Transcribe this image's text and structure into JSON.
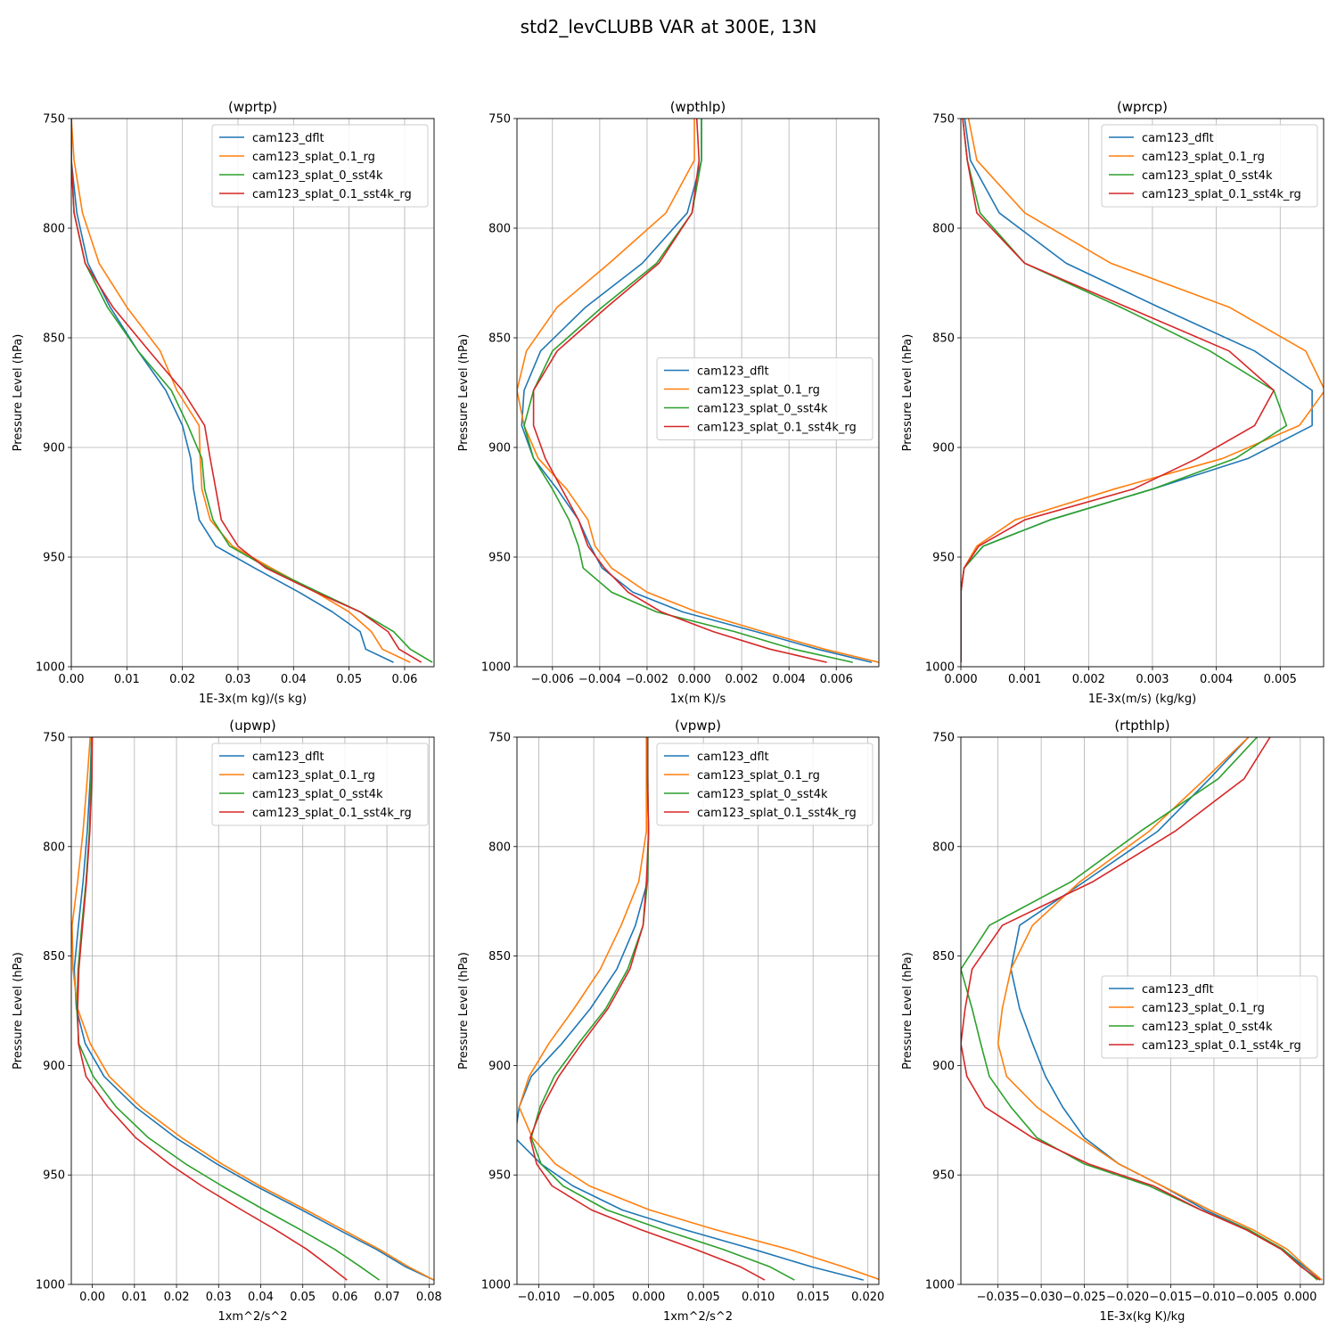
{
  "figure": {
    "title": "std2_levCLUBB VAR at 300E, 13N",
    "series_colors": [
      "#1f77b4",
      "#ff7f0e",
      "#2ca02c",
      "#d62728"
    ]
  },
  "chart_data": [
    {
      "type": "line",
      "title": "(wprtp)",
      "xlabel": "1E-3x(m kg)/(s kg)",
      "ylabel": "Pressure Level (hPa)",
      "xlim": [
        0,
        0.0653
      ],
      "ylim": [
        1000,
        750
      ],
      "xticks": [
        0,
        0.01,
        0.02,
        0.03,
        0.04,
        0.05,
        0.06
      ],
      "xticklabels": [
        "0.00",
        "0.01",
        "0.02",
        "0.03",
        "0.04",
        "0.05",
        "0.06"
      ],
      "yticks": [
        750,
        800,
        850,
        900,
        950,
        1000
      ],
      "yticklabels": [
        "750",
        "800",
        "850",
        "900",
        "950",
        "1000"
      ],
      "legend": "top-right",
      "levels": [
        750,
        769,
        793,
        816,
        836,
        856,
        874,
        890,
        905,
        919,
        933,
        945,
        955,
        966,
        975,
        984,
        992,
        998
      ],
      "series": [
        {
          "name": "cam123_dflt",
          "values": [
            0,
            0,
            0.001,
            0.003,
            0.007,
            0.012,
            0.017,
            0.02,
            0.0215,
            0.022,
            0.023,
            0.026,
            0.033,
            0.041,
            0.047,
            0.052,
            0.053,
            0.058
          ]
        },
        {
          "name": "cam123_splat_0.1_rg",
          "values": [
            0,
            0.0005,
            0.002,
            0.005,
            0.01,
            0.016,
            0.019,
            0.023,
            0.0232,
            0.0235,
            0.025,
            0.029,
            0.036,
            0.044,
            0.05,
            0.054,
            0.056,
            0.061
          ]
        },
        {
          "name": "cam123_splat_0_sst4k",
          "values": [
            0,
            0,
            0.0005,
            0.0025,
            0.0065,
            0.012,
            0.018,
            0.021,
            0.0235,
            0.024,
            0.0255,
            0.0285,
            0.0355,
            0.0445,
            0.052,
            0.058,
            0.061,
            0.065
          ]
        },
        {
          "name": "cam123_splat_0.1_sst4k_rg",
          "values": [
            0,
            0,
            0.0005,
            0.0025,
            0.0075,
            0.014,
            0.02,
            0.024,
            0.025,
            0.026,
            0.027,
            0.03,
            0.035,
            0.044,
            0.052,
            0.057,
            0.059,
            0.063
          ]
        }
      ]
    },
    {
      "type": "line",
      "title": "(wpthlp)",
      "xlabel": "1x(m K)/s",
      "ylabel": "Pressure Level (hPa)",
      "xlim": [
        -0.0075,
        0.0078
      ],
      "ylim": [
        1000,
        750
      ],
      "xticks": [
        -0.006,
        -0.004,
        -0.002,
        0,
        0.002,
        0.004,
        0.006
      ],
      "xticklabels": [
        "−0.006",
        "−0.004",
        "−0.002",
        "0.000",
        "0.002",
        "0.004",
        "0.006"
      ],
      "yticks": [
        750,
        800,
        850,
        900,
        950,
        1000
      ],
      "yticklabels": [
        "750",
        "800",
        "850",
        "900",
        "950",
        "1000"
      ],
      "legend": "center-right",
      "levels": [
        750,
        769,
        793,
        816,
        836,
        856,
        874,
        890,
        905,
        919,
        933,
        945,
        955,
        966,
        975,
        984,
        992,
        998
      ],
      "series": [
        {
          "name": "cam123_dflt",
          "values": [
            0.0003,
            0.0003,
            -0.0003,
            -0.0022,
            -0.0046,
            -0.0065,
            -0.0072,
            -0.0073,
            -0.0068,
            -0.0058,
            -0.0049,
            -0.0044,
            -0.0039,
            -0.0026,
            -0.0005,
            0.0026,
            0.0052,
            0.0075
          ]
        },
        {
          "name": "cam123_splat_0.1_rg",
          "values": [
            0.0,
            0.0,
            -0.0012,
            -0.0036,
            -0.0058,
            -0.0071,
            -0.0075,
            -0.0072,
            -0.0066,
            -0.0054,
            -0.0045,
            -0.0042,
            -0.0035,
            -0.002,
            0.0001,
            0.0029,
            0.0055,
            0.0078
          ]
        },
        {
          "name": "cam123_splat_0_sst4k",
          "values": [
            0.0003,
            0.0003,
            -0.0001,
            -0.0016,
            -0.0039,
            -0.006,
            -0.0068,
            -0.0072,
            -0.0068,
            -0.006,
            -0.0053,
            -0.0049,
            -0.0047,
            -0.0035,
            -0.0016,
            0.0017,
            0.0042,
            0.0067
          ]
        },
        {
          "name": "cam123_splat_0.1_sst4k_rg",
          "values": [
            0.0001,
            0.0002,
            -0.0001,
            -0.0015,
            -0.0037,
            -0.0058,
            -0.0068,
            -0.0068,
            -0.0063,
            -0.0056,
            -0.0049,
            -0.0045,
            -0.0038,
            -0.0028,
            -0.0014,
            0.0008,
            0.0032,
            0.0056
          ]
        }
      ]
    },
    {
      "type": "line",
      "title": "(wprcp)",
      "xlabel": "1E-3x(m/s) (kg/kg)",
      "ylabel": "Pressure Level (hPa)",
      "xlim": [
        0,
        0.00568
      ],
      "ylim": [
        1000,
        750
      ],
      "xticks": [
        0,
        0.001,
        0.002,
        0.003,
        0.004,
        0.005
      ],
      "xticklabels": [
        "0.000",
        "0.001",
        "0.002",
        "0.003",
        "0.004",
        "0.005"
      ],
      "yticks": [
        750,
        800,
        850,
        900,
        950,
        1000
      ],
      "yticklabels": [
        "750",
        "800",
        "850",
        "900",
        "950",
        "1000"
      ],
      "legend": "top-right",
      "levels": [
        750,
        769,
        793,
        816,
        836,
        856,
        874,
        890,
        905,
        919,
        933,
        945,
        955,
        966,
        975,
        984,
        992,
        998
      ],
      "series": [
        {
          "name": "cam123_dflt",
          "values": [
            6e-05,
            0.00015,
            0.0006,
            0.00165,
            0.0031,
            0.0046,
            0.0055,
            0.0055,
            0.0045,
            0.003,
            0.0014,
            0.00035,
            5e-05,
            0,
            0,
            0,
            0,
            0
          ]
        },
        {
          "name": "cam123_splat_0.1_rg",
          "values": [
            0.00012,
            0.00025,
            0.001,
            0.00235,
            0.0042,
            0.0054,
            0.0057,
            0.0053,
            0.0041,
            0.0024,
            0.00085,
            0.00025,
            5e-05,
            0,
            0,
            0,
            0,
            0
          ]
        },
        {
          "name": "cam123_splat_0_sst4k",
          "values": [
            3e-05,
            0.0001,
            0.0003,
            0.001,
            0.0025,
            0.0039,
            0.0049,
            0.0051,
            0.0043,
            0.003,
            0.0014,
            0.00035,
            5e-05,
            0,
            0,
            0,
            0,
            0
          ]
        },
        {
          "name": "cam123_splat_0.1_sst4k_rg",
          "values": [
            3e-05,
            0.0001,
            0.00025,
            0.001,
            0.0026,
            0.0042,
            0.0049,
            0.0046,
            0.0037,
            0.0027,
            0.001,
            0.00028,
            5e-05,
            0,
            0,
            0,
            0,
            0
          ]
        }
      ]
    },
    {
      "type": "line",
      "title": "(upwp)",
      "xlabel": "1xm^2/s^2",
      "ylabel": "Pressure Level (hPa)",
      "xlim": [
        -0.005,
        0.0812
      ],
      "ylim": [
        1000,
        750
      ],
      "xticks": [
        0,
        0.01,
        0.02,
        0.03,
        0.04,
        0.05,
        0.06,
        0.07,
        0.08
      ],
      "xticklabels": [
        "0.00",
        "0.01",
        "0.02",
        "0.03",
        "0.04",
        "0.05",
        "0.06",
        "0.07",
        "0.08"
      ],
      "yticks": [
        750,
        800,
        850,
        900,
        950,
        1000
      ],
      "yticklabels": [
        "750",
        "800",
        "850",
        "900",
        "950",
        "1000"
      ],
      "legend": "top-right",
      "levels": [
        750,
        769,
        793,
        816,
        836,
        856,
        874,
        890,
        905,
        919,
        933,
        945,
        955,
        966,
        975,
        984,
        992,
        998
      ],
      "series": [
        {
          "name": "cam123_dflt",
          "values": [
            -0.0002,
            -0.0005,
            -0.0012,
            -0.0022,
            -0.0033,
            -0.0043,
            -0.0038,
            -0.0017,
            0.0028,
            0.0103,
            0.0198,
            0.0296,
            0.0388,
            0.0498,
            0.0585,
            0.0675,
            0.0745,
            0.0812
          ]
        },
        {
          "name": "cam123_splat_0.1_rg",
          "values": [
            -0.0005,
            -0.0012,
            -0.0022,
            -0.0035,
            -0.0048,
            -0.0046,
            -0.0035,
            -0.0005,
            0.004,
            0.0115,
            0.0212,
            0.0308,
            0.0398,
            0.0508,
            0.0595,
            0.0682,
            0.0752,
            0.0812
          ]
        },
        {
          "name": "cam123_splat_0_sst4k",
          "values": [
            -0.0002,
            -0.0003,
            -0.0007,
            -0.0015,
            -0.0025,
            -0.0034,
            -0.0037,
            -0.0032,
            0.0002,
            0.0057,
            0.0133,
            0.0222,
            0.0308,
            0.0409,
            0.0494,
            0.0576,
            0.0638,
            0.0682
          ]
        },
        {
          "name": "cam123_splat_0.1_sst4k_rg",
          "values": [
            0,
            -0.0001,
            -0.0006,
            -0.0014,
            -0.0023,
            -0.0032,
            -0.0035,
            -0.0033,
            -0.0015,
            0.0037,
            0.0103,
            0.0183,
            0.026,
            0.0355,
            0.0435,
            0.051,
            0.0565,
            0.0605
          ]
        }
      ]
    },
    {
      "type": "line",
      "title": "(vpwp)",
      "xlabel": "1xm^2/s^2",
      "ylabel": "Pressure Level (hPa)",
      "xlim": [
        -0.012,
        0.021
      ],
      "ylim": [
        1000,
        750
      ],
      "xticks": [
        -0.01,
        -0.005,
        0,
        0.005,
        0.01,
        0.015,
        0.02
      ],
      "xticklabels": [
        "−0.010",
        "−0.005",
        "0.000",
        "0.005",
        "0.010",
        "0.015",
        "0.020"
      ],
      "yticks": [
        750,
        800,
        850,
        900,
        950,
        1000
      ],
      "yticklabels": [
        "750",
        "800",
        "850",
        "900",
        "950",
        "1000"
      ],
      "legend": "top-right",
      "levels": [
        750,
        769,
        793,
        816,
        836,
        856,
        874,
        890,
        905,
        919,
        933,
        945,
        955,
        966,
        975,
        984,
        992,
        998
      ],
      "series": [
        {
          "name": "cam123_dflt",
          "values": [
            -0.0002,
            -0.0001,
            0,
            -0.0001,
            -0.0012,
            -0.0029,
            -0.0053,
            -0.0079,
            -0.0107,
            -0.0118,
            -0.0122,
            -0.0098,
            -0.0069,
            -0.0024,
            0.0033,
            0.0096,
            0.0149,
            0.0196
          ]
        },
        {
          "name": "cam123_splat_0.1_rg",
          "values": [
            -0.0002,
            -0.0002,
            -0.0002,
            -0.0009,
            -0.0025,
            -0.0044,
            -0.0068,
            -0.0091,
            -0.0109,
            -0.0118,
            -0.0106,
            -0.0085,
            -0.0054,
            0.0001,
            0.0061,
            0.0128,
            0.0178,
            0.0212
          ]
        },
        {
          "name": "cam123_splat_0_sst4k",
          "values": [
            -0.0001,
            -0.0001,
            0,
            -0.0001,
            -0.0005,
            -0.0019,
            -0.0039,
            -0.0064,
            -0.0086,
            -0.0099,
            -0.0107,
            -0.0098,
            -0.0078,
            -0.0038,
            0.0013,
            0.0068,
            0.0111,
            0.0133
          ]
        },
        {
          "name": "cam123_splat_0.1_sst4k_rg",
          "values": [
            -0.0001,
            -0.0001,
            0,
            -0.0002,
            -0.0005,
            -0.0017,
            -0.0037,
            -0.0061,
            -0.0082,
            -0.0097,
            -0.0108,
            -0.0102,
            -0.0088,
            -0.0052,
            -0.0007,
            0.0043,
            0.0084,
            0.0106
          ]
        }
      ]
    },
    {
      "type": "line",
      "title": "(rtpthlp)",
      "xlabel": "1E-3x(kg K)/kg",
      "ylabel": "Pressure Level (hPa)",
      "xlim": [
        -0.0393,
        0.0027
      ],
      "ylim": [
        1000,
        750
      ],
      "xticks": [
        -0.035,
        -0.03,
        -0.025,
        -0.02,
        -0.015,
        -0.01,
        -0.005,
        0
      ],
      "xticklabels": [
        "−0.035",
        "−0.030",
        "−0.025",
        "−0.020",
        "−0.015",
        "−0.010",
        "−0.005",
        "0.000"
      ],
      "yticks": [
        750,
        800,
        850,
        900,
        950,
        1000
      ],
      "yticklabels": [
        "750",
        "800",
        "850",
        "900",
        "950",
        "1000"
      ],
      "legend": "center-right",
      "levels": [
        750,
        769,
        793,
        816,
        836,
        856,
        874,
        890,
        905,
        919,
        933,
        945,
        955,
        966,
        975,
        984,
        992,
        998
      ],
      "series": [
        {
          "name": "cam123_dflt",
          "values": [
            -0.006,
            -0.0105,
            -0.0165,
            -0.025,
            -0.0325,
            -0.0335,
            -0.0325,
            -0.031,
            -0.0295,
            -0.0275,
            -0.025,
            -0.021,
            -0.016,
            -0.011,
            -0.006,
            -0.002,
            0.0005,
            0.0025
          ]
        },
        {
          "name": "cam123_splat_0.1_rg",
          "values": [
            -0.006,
            -0.011,
            -0.0175,
            -0.0255,
            -0.031,
            -0.0335,
            -0.0345,
            -0.035,
            -0.034,
            -0.0305,
            -0.0255,
            -0.021,
            -0.016,
            -0.0105,
            -0.0055,
            -0.0015,
            0.0007,
            0.0025
          ]
        },
        {
          "name": "cam123_splat_0_sst4k",
          "values": [
            -0.005,
            -0.0095,
            -0.0185,
            -0.0265,
            -0.036,
            -0.0393,
            -0.038,
            -0.037,
            -0.036,
            -0.0335,
            -0.0305,
            -0.025,
            -0.0175,
            -0.0115,
            -0.006,
            -0.002,
            0.0002,
            0.002
          ]
        },
        {
          "name": "cam123_splat_0.1_sst4k_rg",
          "values": [
            -0.0035,
            -0.0065,
            -0.0145,
            -0.024,
            -0.0345,
            -0.038,
            -0.0388,
            -0.0393,
            -0.0386,
            -0.0365,
            -0.031,
            -0.0245,
            -0.017,
            -0.0115,
            -0.0063,
            -0.0022,
            0.0001,
            0.0023
          ]
        }
      ]
    }
  ]
}
